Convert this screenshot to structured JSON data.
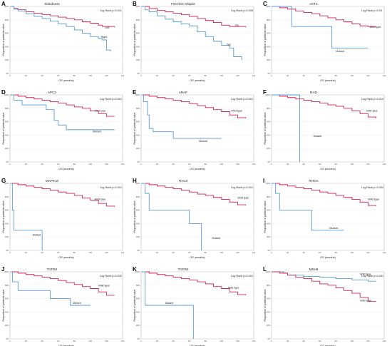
{
  "colors": {
    "red": "#d2234e",
    "blue": "#5a9bd5",
    "grid": "#eeeeee",
    "frame": "#999999"
  },
  "common": {
    "xlabel": "OS (months)",
    "ylabel": "Proportion of patients alive",
    "xticks": [
      "0",
      "20",
      "40",
      "60",
      "80",
      "100",
      "120",
      "140"
    ],
    "yticks": [
      "0%",
      "20%",
      "40%",
      "60%",
      "80%",
      "100%"
    ]
  },
  "chart_data": [
    {
      "panel": "A",
      "type": "line",
      "title": "Sidedness",
      "log_rank": "Log Rank p=0.011",
      "xlim": [
        0,
        140
      ],
      "ylim": [
        0,
        1
      ],
      "series": [
        {
          "name": "Left",
          "color": "red",
          "label_xy": [
            118,
            0.67
          ],
          "x": [
            0,
            5,
            10,
            20,
            30,
            40,
            50,
            60,
            70,
            80,
            90,
            100,
            110,
            115,
            130
          ],
          "y": [
            1,
            0.97,
            0.95,
            0.92,
            0.9,
            0.88,
            0.86,
            0.84,
            0.82,
            0.8,
            0.77,
            0.75,
            0.72,
            0.7,
            0.69
          ]
        },
        {
          "name": "Right",
          "color": "blue",
          "label_xy": [
            113,
            0.53
          ],
          "x": [
            0,
            5,
            10,
            20,
            30,
            40,
            50,
            60,
            70,
            80,
            90,
            100,
            110,
            115,
            120,
            125
          ],
          "y": [
            1,
            0.96,
            0.93,
            0.89,
            0.85,
            0.82,
            0.78,
            0.74,
            0.7,
            0.65,
            0.6,
            0.55,
            0.52,
            0.5,
            0.35,
            0.33
          ]
        }
      ]
    },
    {
      "panel": "B",
      "type": "line",
      "title": "First-line relapse",
      "log_rank": "Log Rank p=0.008",
      "xlim": [
        0,
        140
      ],
      "ylim": [
        0,
        1
      ],
      "series": [
        {
          "name": "No",
          "color": "red",
          "label_xy": [
            117,
            0.71
          ],
          "x": [
            0,
            10,
            20,
            30,
            40,
            50,
            60,
            70,
            80,
            90,
            100,
            110,
            130
          ],
          "y": [
            1,
            0.97,
            0.94,
            0.92,
            0.9,
            0.88,
            0.85,
            0.82,
            0.79,
            0.76,
            0.72,
            0.7,
            0.69
          ]
        },
        {
          "name": "Yes",
          "color": "blue",
          "label_xy": [
            106,
            0.42
          ],
          "x": [
            0,
            5,
            10,
            20,
            30,
            40,
            50,
            60,
            70,
            80,
            90,
            100,
            110,
            115,
            125
          ],
          "y": [
            1,
            0.95,
            0.92,
            0.86,
            0.81,
            0.77,
            0.74,
            0.71,
            0.62,
            0.55,
            0.48,
            0.42,
            0.38,
            0.25,
            0.2
          ]
        }
      ]
    },
    {
      "panel": "C",
      "type": "line",
      "title": "AKT1",
      "log_rank": "Log Rank p=0.03",
      "xlim": [
        0,
        140
      ],
      "ylim": [
        0,
        1
      ],
      "series": [
        {
          "name": "Wild type",
          "color": "red",
          "label_xy": [
            122,
            0.68
          ],
          "x": [
            0,
            10,
            20,
            30,
            40,
            50,
            60,
            70,
            80,
            90,
            100,
            110,
            120,
            130
          ],
          "y": [
            1,
            0.98,
            0.96,
            0.93,
            0.91,
            0.89,
            0.86,
            0.83,
            0.8,
            0.77,
            0.74,
            0.71,
            0.7,
            0.7
          ]
        },
        {
          "name": "Mutant",
          "color": "blue",
          "label_xy": [
            80,
            0.32
          ],
          "x": [
            0,
            8,
            25,
            60,
            75,
            100,
            120
          ],
          "y": [
            1,
            1,
            0.7,
            0.7,
            0.38,
            0.38,
            0.38
          ]
        }
      ]
    },
    {
      "panel": "D",
      "type": "line",
      "title": "APC2",
      "log_rank": "Log Rank p=0.001",
      "xlim": [
        0,
        140
      ],
      "ylim": [
        0,
        1
      ],
      "series": [
        {
          "name": "Wild type",
          "color": "red",
          "label_xy": [
            105,
            0.75
          ],
          "x": [
            0,
            10,
            20,
            30,
            40,
            50,
            60,
            70,
            80,
            90,
            100,
            110,
            120,
            130
          ],
          "y": [
            1,
            0.98,
            0.96,
            0.94,
            0.92,
            0.9,
            0.88,
            0.85,
            0.82,
            0.8,
            0.76,
            0.72,
            0.68,
            0.68
          ]
        },
        {
          "name": "Mutant",
          "color": "blue",
          "label_xy": [
            103,
            0.44
          ],
          "x": [
            0,
            5,
            15,
            25,
            40,
            45,
            55,
            60,
            70,
            90,
            110,
            130
          ],
          "y": [
            1,
            0.92,
            0.85,
            0.85,
            0.85,
            0.78,
            0.62,
            0.55,
            0.48,
            0.48,
            0.48,
            0.48
          ]
        }
      ]
    },
    {
      "panel": "E",
      "type": "line",
      "title": "ARAF",
      "log_rank": "Log Rank p=0.001",
      "xlim": [
        0,
        140
      ],
      "ylim": [
        0,
        1
      ],
      "series": [
        {
          "name": "Wild type",
          "color": "red",
          "label_xy": [
            112,
            0.75
          ],
          "x": [
            0,
            10,
            20,
            30,
            40,
            50,
            60,
            70,
            80,
            90,
            100,
            110,
            120,
            130
          ],
          "y": [
            1,
            0.98,
            0.96,
            0.94,
            0.92,
            0.9,
            0.87,
            0.84,
            0.81,
            0.78,
            0.75,
            0.7,
            0.66,
            0.65
          ]
        },
        {
          "name": "Mutant",
          "color": "blue",
          "label_xy": [
            72,
            0.3
          ],
          "x": [
            0,
            3,
            8,
            10,
            15,
            20,
            40,
            60,
            80,
            100
          ],
          "y": [
            1,
            0.9,
            0.7,
            0.5,
            0.45,
            0.45,
            0.35,
            0.35,
            0.35,
            0.35
          ]
        }
      ]
    },
    {
      "panel": "F",
      "type": "line",
      "title": "RAD",
      "log_rank": "Log Rank p=0.013",
      "xlim": [
        0,
        140
      ],
      "ylim": [
        0,
        1
      ],
      "series": [
        {
          "name": "Wild type",
          "color": "red",
          "label_xy": [
            118,
            0.75
          ],
          "x": [
            0,
            10,
            20,
            30,
            40,
            50,
            60,
            70,
            80,
            90,
            100,
            110,
            120,
            130
          ],
          "y": [
            1,
            0.98,
            0.96,
            0.94,
            0.92,
            0.9,
            0.88,
            0.85,
            0.83,
            0.8,
            0.76,
            0.72,
            0.67,
            0.65
          ]
        },
        {
          "name": "Mutant",
          "color": "blue",
          "label_xy": [
            52,
            0.37
          ],
          "x": [
            0,
            35,
            35
          ],
          "y": [
            1,
            1,
            0
          ]
        }
      ]
    },
    {
      "panel": "G",
      "type": "line",
      "title": "MAPK10",
      "log_rank": "Log Rank p<0.001",
      "xlim": [
        0,
        140
      ],
      "ylim": [
        0,
        1
      ],
      "series": [
        {
          "name": "Wild type",
          "color": "red",
          "label_xy": [
            105,
            0.75
          ],
          "x": [
            0,
            10,
            20,
            30,
            40,
            50,
            60,
            70,
            80,
            90,
            100,
            110,
            120,
            130
          ],
          "y": [
            1,
            0.98,
            0.96,
            0.94,
            0.92,
            0.9,
            0.87,
            0.85,
            0.82,
            0.78,
            0.75,
            0.7,
            0.66,
            0.65
          ]
        },
        {
          "name": "Mutant",
          "color": "blue",
          "label_xy": [
            28,
            0.22
          ],
          "x": [
            0,
            3,
            5,
            8,
            30,
            40,
            40
          ],
          "y": [
            1,
            0.6,
            0.3,
            0.3,
            0.3,
            0.3,
            0
          ]
        }
      ]
    },
    {
      "panel": "H",
      "type": "line",
      "title": "RAC3",
      "log_rank": "Log Rank p<0.001",
      "xlim": [
        0,
        140
      ],
      "ylim": [
        0,
        1
      ],
      "series": [
        {
          "name": "Wild type",
          "color": "red",
          "label_xy": [
            120,
            0.77
          ],
          "x": [
            0,
            10,
            20,
            30,
            40,
            50,
            60,
            70,
            80,
            90,
            100,
            110,
            120,
            130
          ],
          "y": [
            1,
            0.98,
            0.96,
            0.94,
            0.92,
            0.9,
            0.87,
            0.84,
            0.82,
            0.79,
            0.76,
            0.72,
            0.68,
            0.67
          ]
        },
        {
          "name": "Mutant",
          "color": "blue",
          "label_xy": [
            88,
            0.17
          ],
          "x": [
            0,
            5,
            10,
            30,
            60,
            60,
            75,
            75
          ],
          "y": [
            1,
            0.85,
            0.6,
            0.6,
            0.6,
            0.4,
            0.4,
            0
          ]
        }
      ]
    },
    {
      "panel": "I",
      "type": "line",
      "title": "RHOA",
      "log_rank": "Log Rank p=0.004",
      "xlim": [
        0,
        140
      ],
      "ylim": [
        0,
        1
      ],
      "series": [
        {
          "name": "Wild type",
          "color": "red",
          "label_xy": [
            120,
            0.75
          ],
          "x": [
            0,
            10,
            20,
            30,
            40,
            50,
            60,
            70,
            80,
            90,
            100,
            110,
            120,
            130
          ],
          "y": [
            1,
            0.98,
            0.96,
            0.94,
            0.92,
            0.9,
            0.87,
            0.85,
            0.82,
            0.79,
            0.76,
            0.72,
            0.67,
            0.66
          ]
        },
        {
          "name": "Mutant",
          "color": "blue",
          "label_xy": [
            72,
            0.32
          ],
          "x": [
            0,
            5,
            10,
            40,
            50,
            50,
            70,
            90
          ],
          "y": [
            1,
            0.85,
            0.6,
            0.6,
            0.6,
            0.3,
            0.3,
            0.3
          ]
        }
      ]
    },
    {
      "panel": "J",
      "type": "line",
      "title": "TGFB2",
      "log_rank": "Log Rank p=0.032",
      "xlim": [
        0,
        140
      ],
      "ylim": [
        0,
        1
      ],
      "series": [
        {
          "name": "Wild type",
          "color": "red",
          "label_xy": [
            110,
            0.78
          ],
          "x": [
            0,
            10,
            20,
            30,
            40,
            50,
            60,
            70,
            80,
            90,
            100,
            110,
            120,
            130
          ],
          "y": [
            1,
            0.98,
            0.96,
            0.94,
            0.92,
            0.9,
            0.87,
            0.84,
            0.81,
            0.78,
            0.75,
            0.7,
            0.65,
            0.65
          ]
        },
        {
          "name": "Mutant",
          "color": "blue",
          "label_xy": [
            78,
            0.52
          ],
          "x": [
            0,
            3,
            10,
            40,
            50,
            70,
            75,
            80,
            100
          ],
          "y": [
            1,
            0.85,
            0.72,
            0.72,
            0.6,
            0.6,
            0.5,
            0.5,
            0.5
          ]
        }
      ]
    },
    {
      "panel": "K",
      "type": "line",
      "title": "TGFB3",
      "log_rank": "Log Rank p<0.001",
      "xlim": [
        0,
        140
      ],
      "ylim": [
        0,
        1
      ],
      "series": [
        {
          "name": "Wild type",
          "color": "red",
          "label_xy": [
            108,
            0.75
          ],
          "x": [
            0,
            10,
            20,
            30,
            40,
            50,
            60,
            70,
            80,
            90,
            100,
            110,
            120,
            130
          ],
          "y": [
            1,
            0.98,
            0.96,
            0.94,
            0.92,
            0.9,
            0.88,
            0.85,
            0.82,
            0.78,
            0.75,
            0.7,
            0.66,
            0.65
          ]
        },
        {
          "name": "Mutant",
          "color": "blue",
          "label_xy": [
            30,
            0.52
          ],
          "x": [
            0,
            5,
            5,
            65,
            65
          ],
          "y": [
            1,
            1,
            0.5,
            0.5,
            0
          ]
        }
      ]
    },
    {
      "panel": "L",
      "type": "line",
      "title": "MSH6",
      "log_rank": "Log Rank p=0.031",
      "xlim": [
        0,
        140
      ],
      "ylim": [
        0,
        1
      ],
      "series": [
        {
          "name": "Wild type",
          "color": "blue",
          "label_xy": [
            110,
            0.95
          ],
          "x": [
            0,
            15,
            20,
            40,
            60,
            80,
            100,
            120,
            130
          ],
          "y": [
            1,
            0.98,
            0.95,
            0.93,
            0.92,
            0.9,
            0.88,
            0.86,
            0.86
          ]
        },
        {
          "name": "Wild type",
          "color": "red",
          "label_xy": [
            110,
            0.56
          ],
          "x": [
            0,
            10,
            20,
            30,
            40,
            50,
            60,
            70,
            80,
            90,
            100,
            110,
            120,
            130
          ],
          "y": [
            1,
            0.98,
            0.95,
            0.92,
            0.9,
            0.86,
            0.82,
            0.8,
            0.76,
            0.72,
            0.68,
            0.62,
            0.56,
            0.56
          ]
        }
      ]
    }
  ]
}
